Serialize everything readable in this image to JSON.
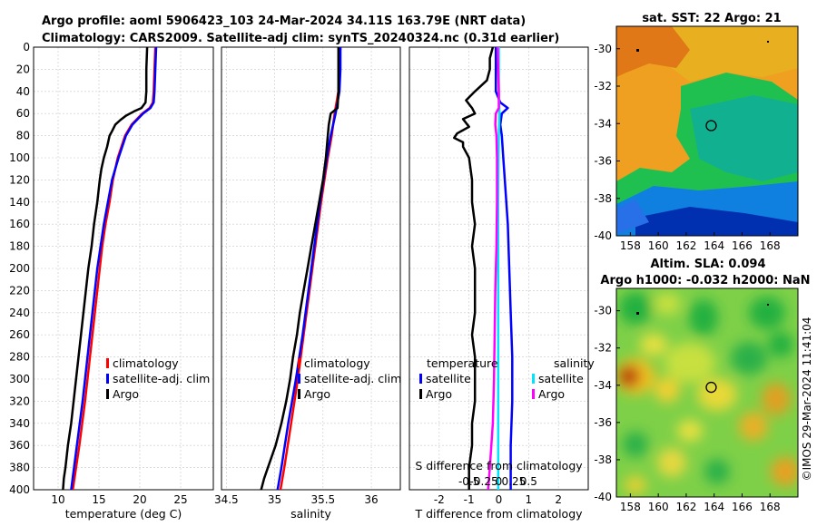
{
  "header": {
    "line1": "Argo profile: aoml 5906423_103 24-Mar-2024 34.11S 163.79E (NRT data)",
    "line2": "Climatology: CARS2009. Satellite-adj clim: synTS_20240324.nc (0.31d earlier)"
  },
  "colors": {
    "climatology": "#ff0000",
    "satellite": "#0000ff",
    "argo": "#000000",
    "sal_satellite": "#00e5ff",
    "sal_argo": "#ff00ff"
  },
  "chart_data": [
    {
      "id": "temperature",
      "type": "line",
      "xlabel": "temperature (deg C)",
      "xlim": [
        7,
        29
      ],
      "xticks": [
        10,
        15,
        20,
        25
      ],
      "ylim": [
        0,
        400
      ],
      "yticks": [
        0,
        20,
        40,
        60,
        80,
        100,
        120,
        140,
        160,
        180,
        200,
        220,
        240,
        260,
        280,
        300,
        320,
        340,
        360,
        380,
        400
      ],
      "y_reversed": true,
      "legend": [
        "climatology",
        "satellite-adj. clim",
        "Argo"
      ],
      "series": [
        {
          "name": "climatology",
          "depth": [
            0,
            20,
            40,
            50,
            55,
            60,
            70,
            80,
            100,
            120,
            140,
            160,
            180,
            200,
            240,
            280,
            320,
            360,
            400
          ],
          "values": [
            21.9,
            21.8,
            21.7,
            21.6,
            21.2,
            20.3,
            19.0,
            18.2,
            17.3,
            16.7,
            16.3,
            15.8,
            15.4,
            15.1,
            14.5,
            13.9,
            13.3,
            12.6,
            11.8
          ]
        },
        {
          "name": "satellite-adj. clim",
          "depth": [
            0,
            20,
            40,
            50,
            55,
            60,
            70,
            80,
            100,
            120,
            140,
            160,
            180,
            200,
            240,
            280,
            320,
            360,
            400
          ],
          "values": [
            22.0,
            21.9,
            21.8,
            21.7,
            21.3,
            20.4,
            19.1,
            18.3,
            17.4,
            16.6,
            16.1,
            15.6,
            15.2,
            14.8,
            14.2,
            13.6,
            13.0,
            12.3,
            11.6
          ]
        },
        {
          "name": "Argo",
          "depth": [
            0,
            20,
            40,
            50,
            55,
            58,
            62,
            66,
            70,
            76,
            80,
            90,
            100,
            110,
            120,
            140,
            160,
            180,
            200,
            220,
            240,
            260,
            280,
            300,
            320,
            340,
            360,
            380,
            390,
            400
          ],
          "values": [
            20.9,
            20.8,
            20.8,
            20.7,
            20.2,
            19.3,
            18.3,
            17.6,
            17.0,
            16.6,
            16.3,
            16.0,
            15.6,
            15.3,
            15.1,
            14.8,
            14.4,
            14.1,
            13.7,
            13.4,
            13.1,
            12.8,
            12.5,
            12.2,
            11.9,
            11.6,
            11.2,
            10.9,
            10.7,
            10.6
          ]
        }
      ]
    },
    {
      "id": "salinity",
      "type": "line",
      "xlabel": "salinity",
      "xlim": [
        34.45,
        36.3
      ],
      "xticks": [
        34.5,
        35,
        35.5,
        36
      ],
      "ylim": [
        0,
        400
      ],
      "y_reversed": true,
      "legend": [
        "climatology",
        "satellite-adj. clim",
        "Argo"
      ],
      "series": [
        {
          "name": "climatology",
          "depth": [
            0,
            20,
            40,
            60,
            80,
            100,
            140,
            180,
            220,
            260,
            300,
            340,
            380,
            400
          ],
          "values": [
            35.68,
            35.67,
            35.66,
            35.62,
            35.59,
            35.55,
            35.48,
            35.42,
            35.36,
            35.3,
            35.24,
            35.17,
            35.1,
            35.06
          ]
        },
        {
          "name": "satellite-adj. clim",
          "depth": [
            0,
            20,
            40,
            60,
            80,
            100,
            140,
            180,
            220,
            260,
            300,
            340,
            380,
            400
          ],
          "values": [
            35.68,
            35.68,
            35.67,
            35.63,
            35.58,
            35.54,
            35.47,
            35.41,
            35.35,
            35.29,
            35.22,
            35.14,
            35.07,
            35.03
          ]
        },
        {
          "name": "Argo",
          "depth": [
            0,
            20,
            40,
            55,
            60,
            70,
            80,
            100,
            120,
            140,
            160,
            180,
            200,
            220,
            240,
            260,
            280,
            300,
            320,
            340,
            360,
            380,
            390,
            400
          ],
          "values": [
            35.66,
            35.66,
            35.66,
            35.65,
            35.58,
            35.56,
            35.55,
            35.53,
            35.5,
            35.46,
            35.42,
            35.38,
            35.34,
            35.3,
            35.26,
            35.23,
            35.19,
            35.16,
            35.12,
            35.07,
            35.01,
            34.93,
            34.89,
            34.86
          ]
        }
      ]
    },
    {
      "id": "difference",
      "type": "line",
      "xlabel": "T difference from climatology",
      "xlabel_top": "S difference from climatology",
      "xlim": [
        -3,
        3
      ],
      "xticks": [
        -2,
        -1,
        0,
        1,
        2
      ],
      "xticks_top_labels": [
        "-0.5",
        "-0.25",
        "0",
        "0.25",
        "0.5"
      ],
      "xticks_top_values": [
        -0.5,
        -0.25,
        0,
        0.25,
        0.5
      ],
      "xlim_top": [
        -1.5,
        1.5
      ],
      "ylim": [
        0,
        400
      ],
      "y_reversed": true,
      "legend": {
        "temperature_title": "temperature",
        "salinity_title": "salinity",
        "entries": [
          "satellite",
          "Argo",
          "satellite",
          "Argo"
        ]
      },
      "series": [
        {
          "name": "T satellite",
          "axis": "bottom",
          "depth": [
            0,
            20,
            40,
            50,
            55,
            60,
            70,
            80,
            100,
            120,
            160,
            200,
            240,
            280,
            320,
            360,
            400
          ],
          "values": [
            -0.1,
            -0.1,
            -0.1,
            0.05,
            0.3,
            0.1,
            0.05,
            0.1,
            0.15,
            0.2,
            0.3,
            0.35,
            0.4,
            0.45,
            0.45,
            0.4,
            0.4
          ]
        },
        {
          "name": "T Argo",
          "axis": "bottom",
          "depth": [
            0,
            10,
            20,
            30,
            40,
            48,
            55,
            60,
            65,
            72,
            78,
            82,
            86,
            90,
            100,
            120,
            140,
            160,
            180,
            200,
            220,
            240,
            260,
            280,
            300,
            320,
            340,
            360,
            380,
            400
          ],
          "values": [
            -0.2,
            -0.3,
            -0.3,
            -0.4,
            -0.8,
            -1.1,
            -0.9,
            -0.8,
            -1.2,
            -1.0,
            -1.4,
            -1.5,
            -1.2,
            -1.2,
            -1.0,
            -0.9,
            -0.9,
            -0.8,
            -0.9,
            -0.8,
            -0.8,
            -0.8,
            -0.9,
            -0.8,
            -0.8,
            -0.8,
            -0.9,
            -0.9,
            -1.0,
            -1.0
          ]
        },
        {
          "name": "S satellite",
          "axis": "top",
          "depth": [
            0,
            40,
            60,
            80,
            100,
            140,
            200,
            260,
            320,
            360,
            400
          ],
          "values": [
            0.0,
            0.0,
            0.01,
            0.0,
            -0.005,
            -0.01,
            -0.01,
            -0.01,
            -0.01,
            -0.01,
            -0.01
          ]
        },
        {
          "name": "S Argo",
          "axis": "top",
          "depth": [
            0,
            20,
            40,
            55,
            60,
            70,
            80,
            100,
            140,
            180,
            220,
            260,
            300,
            340,
            380,
            400
          ],
          "values": [
            -0.02,
            -0.01,
            0.0,
            0.0,
            -0.05,
            -0.06,
            -0.04,
            -0.03,
            -0.03,
            -0.04,
            -0.06,
            -0.07,
            -0.08,
            -0.1,
            -0.15,
            -0.18
          ]
        }
      ]
    },
    {
      "id": "sst_map",
      "type": "heatmap",
      "title": "sat. SST: 22 Argo: 21",
      "xlim": [
        157,
        170
      ],
      "xticks": [
        158,
        160,
        162,
        164,
        166,
        168
      ],
      "ylim": [
        -40,
        -28.8
      ],
      "yticks": [
        -30,
        -32,
        -34,
        -36,
        -38,
        -40
      ],
      "argo_marker": {
        "lon": 163.79,
        "lat": -34.11
      }
    },
    {
      "id": "sla_map",
      "type": "heatmap",
      "title": "Altim. SLA: 0.094",
      "subtitle": "Argo h1000: -0.032 h2000: NaN",
      "xlim": [
        157,
        170
      ],
      "xticks": [
        158,
        160,
        162,
        164,
        166,
        168
      ],
      "ylim": [
        -40,
        -28.8
      ],
      "yticks": [
        -30,
        -32,
        -34,
        -36,
        -38,
        -40
      ],
      "argo_marker": {
        "lon": 163.79,
        "lat": -34.11
      }
    }
  ],
  "side_text": "©IMOS 29-Mar-2024 11:41:04"
}
